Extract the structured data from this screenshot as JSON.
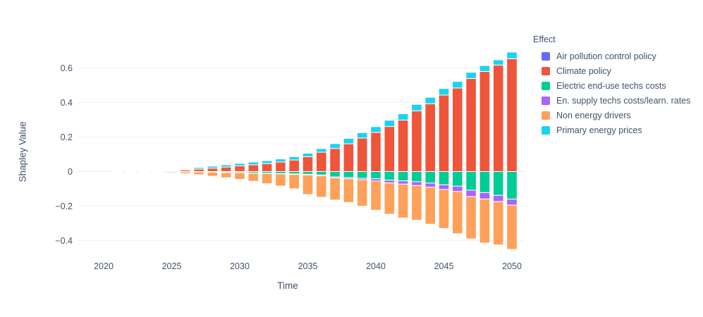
{
  "chart": {
    "xlabel": "Time",
    "ylabel": "Shapley Value",
    "legend_title": "Effect",
    "text_color": "#42526e",
    "grid_color": "#edf1f7",
    "zero_line_color": "#e3e8f0",
    "background": "#ffffff"
  },
  "chart_data": {
    "type": "bar",
    "stacked": true,
    "title": "",
    "xlabel": "Time",
    "ylabel": "Shapley Value",
    "legend_position": "right",
    "legend_title": "Effect",
    "x_tick_labels": [
      "2020",
      "2025",
      "2030",
      "2035",
      "2040",
      "2045",
      "2050"
    ],
    "x_tick_years": [
      2020,
      2025,
      2030,
      2035,
      2040,
      2045,
      2050
    ],
    "y_tick_labels": [
      "0.6",
      "0.4",
      "0.2",
      "0",
      "−0.2",
      "−0.4"
    ],
    "y_tick_values": [
      0.6,
      0.4,
      0.2,
      0,
      -0.2,
      -0.4
    ],
    "ylim": [
      -0.5,
      0.72
    ],
    "xlim": [
      2018.1,
      2051
    ],
    "grid": true,
    "x": [
      2021,
      2022,
      2023,
      2024,
      2025,
      2026,
      2027,
      2028,
      2029,
      2030,
      2031,
      2032,
      2033,
      2034,
      2035,
      2036,
      2037,
      2038,
      2039,
      2040,
      2041,
      2042,
      2043,
      2044,
      2045,
      2046,
      2047,
      2048,
      2049,
      2050
    ],
    "series": [
      {
        "name": "Air pollution control policy",
        "color": "#636EFA",
        "values": [
          0,
          0,
          0,
          0,
          0,
          0,
          0,
          0,
          0,
          0,
          0,
          0,
          0,
          0,
          0,
          0,
          0,
          0,
          0,
          0,
          0,
          0,
          0,
          0,
          0,
          0,
          0,
          0,
          0,
          0
        ]
      },
      {
        "name": "Climate policy",
        "color": "#EF553B",
        "values": [
          0.001,
          0.001,
          0.002,
          0.003,
          0.004,
          0.009,
          0.014,
          0.02,
          0.026,
          0.033,
          0.039,
          0.046,
          0.055,
          0.067,
          0.086,
          0.112,
          0.134,
          0.161,
          0.194,
          0.227,
          0.261,
          0.298,
          0.352,
          0.393,
          0.443,
          0.484,
          0.539,
          0.58,
          0.617,
          0.654
        ]
      },
      {
        "name": "Electric end-use techs costs",
        "color": "#00CC96",
        "values": [
          0,
          -0.001,
          -0.001,
          -0.001,
          -0.001,
          -0.002,
          -0.002,
          -0.003,
          -0.005,
          -0.006,
          -0.009,
          -0.01,
          -0.012,
          -0.014,
          -0.016,
          -0.02,
          -0.031,
          -0.035,
          -0.039,
          -0.042,
          -0.05,
          -0.054,
          -0.059,
          -0.067,
          -0.077,
          -0.085,
          -0.108,
          -0.122,
          -0.138,
          -0.16
        ]
      },
      {
        "name": "En. supply techs costs/learn. rates",
        "color": "#AB63FA",
        "values": [
          0,
          0,
          0,
          0,
          0,
          0,
          0,
          -0.001,
          -0.001,
          -0.001,
          -0.001,
          -0.002,
          -0.002,
          -0.003,
          -0.004,
          -0.005,
          -0.006,
          -0.007,
          -0.009,
          -0.013,
          -0.016,
          -0.019,
          -0.022,
          -0.024,
          -0.027,
          -0.031,
          -0.037,
          -0.037,
          -0.036,
          -0.035
        ]
      },
      {
        "name": "Non energy drivers",
        "color": "#FFA15A",
        "values": [
          -0.001,
          -0.002,
          -0.002,
          -0.003,
          -0.006,
          -0.01,
          -0.016,
          -0.023,
          -0.03,
          -0.038,
          -0.046,
          -0.058,
          -0.07,
          -0.083,
          -0.113,
          -0.124,
          -0.128,
          -0.137,
          -0.153,
          -0.169,
          -0.181,
          -0.196,
          -0.201,
          -0.214,
          -0.226,
          -0.244,
          -0.245,
          -0.255,
          -0.251,
          -0.256
        ]
      },
      {
        "name": "Primary energy prices",
        "color": "#19D3F3",
        "values": [
          0.0,
          0.0,
          0.001,
          0.001,
          0.001,
          0.004,
          0.009,
          0.011,
          0.013,
          0.014,
          0.016,
          0.017,
          0.018,
          0.019,
          0.02,
          0.021,
          0.028,
          0.031,
          0.031,
          0.033,
          0.036,
          0.037,
          0.037,
          0.037,
          0.038,
          0.038,
          0.036,
          0.034,
          0.03,
          0.038
        ]
      }
    ]
  }
}
